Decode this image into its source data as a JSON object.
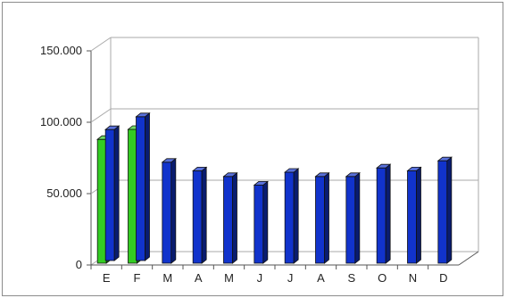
{
  "chart_data": {
    "type": "bar",
    "categories": [
      "E",
      "F",
      "M",
      "A",
      "M",
      "J",
      "J",
      "A",
      "S",
      "O",
      "N",
      "D"
    ],
    "series": [
      {
        "values": [
          88000,
          95000,
          0,
          0,
          0,
          0,
          0,
          0,
          0,
          0,
          0,
          0
        ]
      },
      {
        "values": [
          93000,
          102000,
          72000,
          66000,
          62000,
          56000,
          65000,
          62000,
          62000,
          68000,
          66000,
          73000
        ]
      }
    ],
    "ylim": [
      0,
      150000
    ],
    "yticks": [
      "0",
      "50.000",
      "100.000",
      "150.000"
    ],
    "ytick_values": [
      0,
      50000,
      100000,
      150000
    ],
    "grid": true,
    "three_d": true,
    "colors": {
      "series_green": "#33cc22",
      "series_blue": "#1133cc",
      "grid": "#aaaaaa",
      "frame": "#8c8c8c"
    }
  }
}
